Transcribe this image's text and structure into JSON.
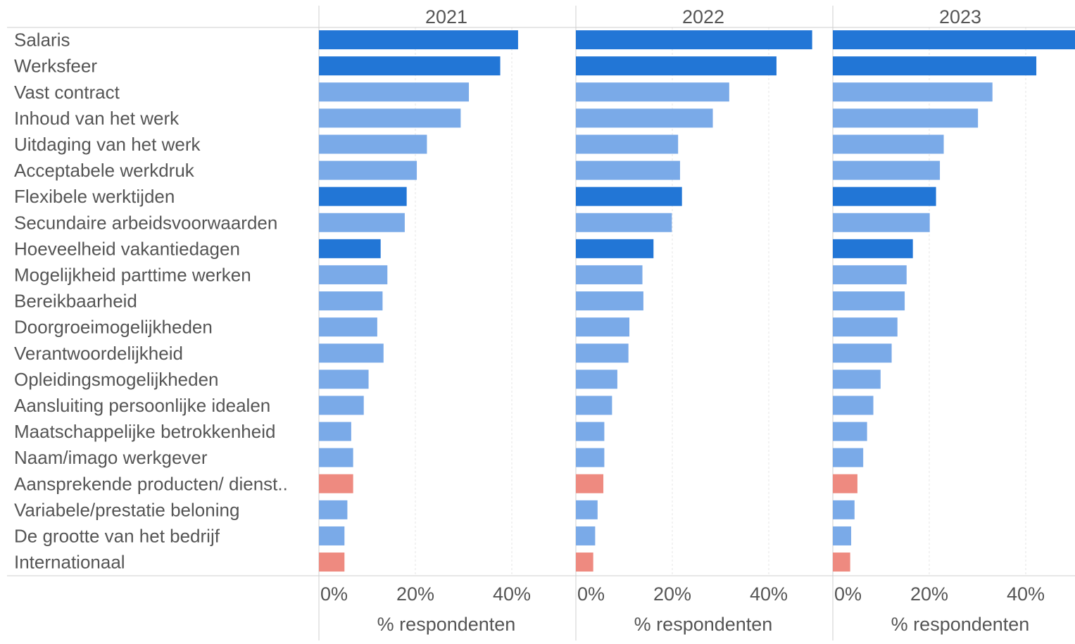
{
  "colors": {
    "dark_blue": "#2276d6",
    "light_blue": "#7aaae8",
    "salmon": "#ee8a80",
    "text": "#555555",
    "grid": "#e4e4e4",
    "divider": "#cfcfcf"
  },
  "chart_data": {
    "type": "bar",
    "orientation": "horizontal",
    "categories": [
      "Salaris",
      "Werksfeer",
      "Vast contract",
      "Inhoud van het werk",
      "Uitdaging van het werk",
      "Acceptabele werkdruk",
      "Flexibele werktijden",
      "Secundaire arbeidsvoorwaarden",
      "Hoeveelheid vakantiedagen",
      "Mogelijkheid parttime werken",
      "Bereikbaarheid",
      "Doorgroeimogelijkheden",
      "Verantwoordelijkheid",
      "Opleidingsmogelijkheden",
      "Aansluiting persoonlijke idealen",
      "Maatschappelijke betrokkenheid",
      "Naam/imago werkgever",
      "Aansprekende producten/ dienst..",
      "Variabele/prestatie beloning",
      "De grootte van het bedrijf",
      "Internationaal"
    ],
    "color_group": [
      "dark",
      "dark",
      "light",
      "light",
      "light",
      "light",
      "dark",
      "light",
      "dark",
      "light",
      "light",
      "light",
      "light",
      "light",
      "light",
      "light",
      "light",
      "salmon",
      "light",
      "light",
      "salmon"
    ],
    "series": [
      {
        "name": "2021",
        "values": [
          41.3,
          37.6,
          31.1,
          29.4,
          22.4,
          20.3,
          18.2,
          17.8,
          12.8,
          14.2,
          13.2,
          12.1,
          13.4,
          10.3,
          9.3,
          6.7,
          7.1,
          7.1,
          5.9,
          5.3,
          5.3
        ]
      },
      {
        "name": "2022",
        "values": [
          49.0,
          41.6,
          31.8,
          28.4,
          21.2,
          21.6,
          22.0,
          19.9,
          16.1,
          13.8,
          14.0,
          11.1,
          10.9,
          8.6,
          7.5,
          5.9,
          5.9,
          5.7,
          4.5,
          4.0,
          3.6
        ]
      },
      {
        "name": "2023",
        "values": [
          50.5,
          42.2,
          33.1,
          30.1,
          23.0,
          22.2,
          21.4,
          20.1,
          16.6,
          15.3,
          14.9,
          13.4,
          12.2,
          9.9,
          8.4,
          7.1,
          6.3,
          5.1,
          4.5,
          3.8,
          3.6
        ]
      }
    ],
    "xlim": [
      0,
      50
    ],
    "xticks": [
      "0%",
      "20%",
      "40%"
    ],
    "xtick_values": [
      0,
      20,
      40
    ],
    "xlabel": "% respondenten",
    "grid": true
  }
}
